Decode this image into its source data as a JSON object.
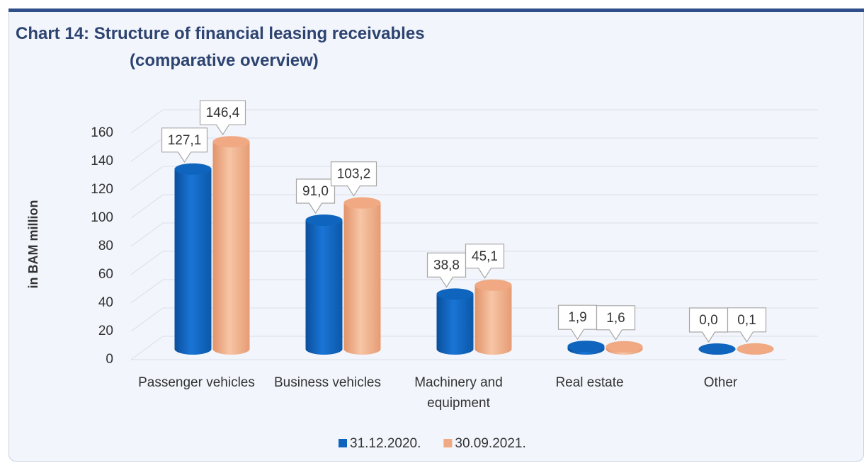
{
  "chart_data": {
    "type": "bar",
    "title": "Chart 14: Structure of financial leasing receivables",
    "subtitle": "(comparative overview)",
    "y_label": "in BAM million",
    "categories": [
      "Passenger vehicles",
      "Business vehicles",
      "Machinery and equipment",
      "Real estate",
      "Other"
    ],
    "series": [
      {
        "name": "31.12.2020.",
        "color": "#0f65bd",
        "values": [
          127.1,
          91.0,
          38.8,
          1.9,
          0.0
        ],
        "value_labels": [
          "127,1",
          "91,0",
          "38,8",
          "1,9",
          "0,0"
        ]
      },
      {
        "name": "30.09.2021.",
        "color": "#f0a982",
        "values": [
          146.4,
          103.2,
          45.1,
          1.6,
          0.1
        ],
        "value_labels": [
          "146,4",
          "103,2",
          "45,1",
          "1,6",
          "0,1"
        ]
      }
    ],
    "ylim": [
      0,
      160
    ],
    "yticks": [
      0,
      20,
      40,
      60,
      80,
      100,
      120,
      140,
      160
    ],
    "grid": true,
    "legend": "bottom"
  }
}
